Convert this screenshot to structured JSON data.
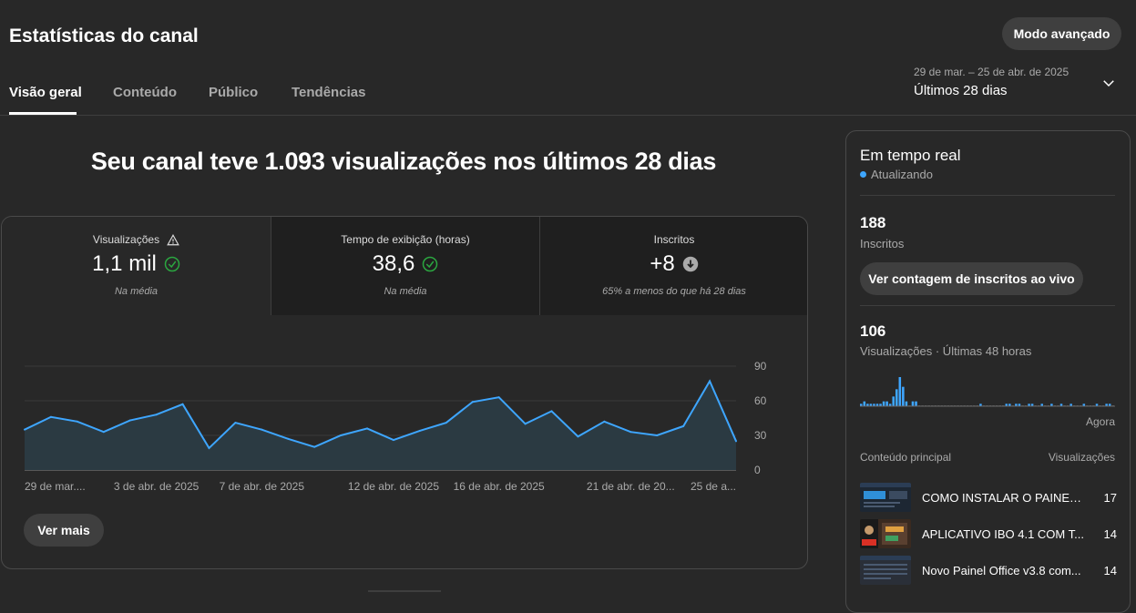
{
  "header": {
    "title": "Estatísticas do canal",
    "advanced_button": "Modo avançado",
    "tabs": [
      {
        "label": "Visão geral",
        "active": true
      },
      {
        "label": "Conteúdo",
        "active": false
      },
      {
        "label": "Público",
        "active": false
      },
      {
        "label": "Tendências",
        "active": false
      }
    ],
    "date_range": "29 de mar. – 25 de abr. de 2025",
    "period_label": "Últimos 28 dias"
  },
  "main": {
    "headline": "Seu canal teve 1.093 visualizações nos últimos 28 dias",
    "metrics": [
      {
        "label": "Visualizações",
        "value": "1,1 mil",
        "sub": "Na média",
        "label_icon": "warning-icon",
        "status_icon": "check-circle-icon"
      },
      {
        "label": "Tempo de exibição (horas)",
        "value": "38,6",
        "sub": "Na média",
        "status_icon": "check-circle-icon"
      },
      {
        "label": "Inscritos",
        "value": "+8",
        "sub": "65% a menos do que há 28 dias",
        "status_icon": "arrow-down-circle-icon"
      }
    ],
    "see_more": "Ver mais"
  },
  "chart_data": {
    "type": "area",
    "x_tick_labels": [
      "29 de mar....",
      "3 de abr. de 2025",
      "7 de abr. de 2025",
      "12 de abr. de 2025",
      "16 de abr. de 2025",
      "21 de abr. de 20...",
      "25 de a..."
    ],
    "y_ticks": [
      0,
      30,
      60,
      90
    ],
    "ylim": [
      0,
      90
    ],
    "values": [
      35,
      46,
      42,
      33,
      43,
      48,
      57,
      19,
      41,
      35,
      27,
      20,
      30,
      36,
      26,
      34,
      41,
      59,
      63,
      40,
      51,
      29,
      42,
      33,
      30,
      38,
      77,
      25
    ],
    "line_color": "#3ea6ff"
  },
  "realtime": {
    "title": "Em tempo real",
    "status": "Atualizando",
    "subscribers": {
      "value": "188",
      "label": "Inscritos"
    },
    "live_button": "Ver contagem de inscritos ao vivo",
    "views": {
      "value": "106",
      "label": "Visualizações · Últimas 48 horas"
    },
    "now_label": "Agora",
    "top_content_label": "Conteúdo principal",
    "top_content_metric": "Visualizações",
    "top_content": [
      {
        "title": "COMO INSTALAR O PAINEL ...",
        "views": "17"
      },
      {
        "title": "APLICATIVO IBO 4.1 COM T...",
        "views": "14"
      },
      {
        "title": "Novo Painel Office v3.8 com...",
        "views": "14"
      }
    ],
    "hourly_views": [
      1,
      2,
      1,
      1,
      1,
      1,
      1,
      2,
      2,
      1,
      4,
      7,
      12,
      8,
      2,
      0,
      2,
      2,
      0,
      0,
      0,
      0,
      0,
      0,
      0,
      0,
      0,
      0,
      0,
      0,
      0,
      0,
      0,
      0,
      0,
      0,
      0,
      1,
      0,
      0,
      0,
      0,
      0,
      0,
      0,
      1,
      1,
      0,
      1,
      1,
      0,
      0,
      1,
      1,
      0,
      0,
      1,
      0,
      0,
      1,
      0,
      0,
      1,
      0,
      0,
      1,
      0,
      0,
      0,
      1,
      0,
      0,
      0,
      1,
      0,
      0,
      1,
      1,
      0
    ]
  }
}
